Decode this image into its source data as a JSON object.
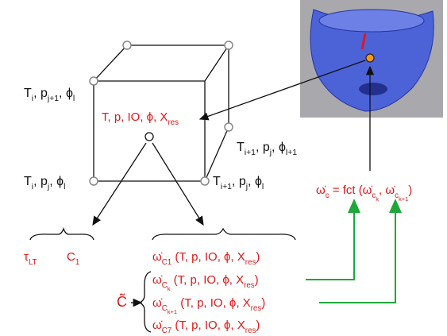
{
  "cube": {
    "top_left": [
      {
        "t": "T"
      },
      {
        "sub": "i"
      },
      {
        "t": ", p"
      },
      {
        "sub": "j+1"
      },
      {
        "t": ", ϕ"
      },
      {
        "sub": "l"
      }
    ],
    "bottom_left": [
      {
        "t": "T"
      },
      {
        "sub": "i"
      },
      {
        "t": ", p"
      },
      {
        "sub": "j"
      },
      {
        "t": ", ϕ"
      },
      {
        "sub": "l"
      }
    ],
    "right": [
      {
        "t": "T"
      },
      {
        "sub": "i+1"
      },
      {
        "t": ", p"
      },
      {
        "sub": "j"
      },
      {
        "t": ", ϕ"
      },
      {
        "sub": "l+1"
      }
    ],
    "bottom_right": [
      {
        "t": "T"
      },
      {
        "sub": "i+1"
      },
      {
        "t": ", p"
      },
      {
        "sub": "j"
      },
      {
        "t": ", ϕ"
      },
      {
        "sub": "l"
      }
    ],
    "center": [
      {
        "t": "T, p, IO, ϕ, X"
      },
      {
        "sub": "res"
      }
    ]
  },
  "function": [
    {
      "t": "ω̇"
    },
    {
      "sub": "c"
    },
    {
      "t": " = fct (ω̇"
    },
    {
      "sub": "c"
    },
    {
      "subsub": "k"
    },
    {
      "t": ", ω̇"
    },
    {
      "sub": "c"
    },
    {
      "subsub": "k+1"
    },
    {
      "t": ")"
    }
  ],
  "left_group": {
    "tau": [
      {
        "t": "τ"
      },
      {
        "sub": "LT"
      }
    ],
    "c1": [
      {
        "t": "C"
      },
      {
        "sub": "1"
      }
    ]
  },
  "c_tilde": [
    {
      "t": "C̃"
    }
  ],
  "list": [
    [
      {
        "t": "ω̇"
      },
      {
        "sub": "C1"
      },
      {
        "t": " (T, p, IO, ϕ, X"
      },
      {
        "sub": "res"
      },
      {
        "t": ")"
      }
    ],
    [
      {
        "t": "ω̇"
      },
      {
        "sub": "C"
      },
      {
        "subsub": "k"
      },
      {
        "t": " (T, p, IO, ϕ, X"
      },
      {
        "sub": "res"
      },
      {
        "t": ")"
      }
    ],
    [
      {
        "t": "ω̇"
      },
      {
        "sub": "C"
      },
      {
        "subsub": "k+1"
      },
      {
        "t": " (T, p, IO, ϕ, X"
      },
      {
        "sub": "res"
      },
      {
        "t": ")"
      }
    ],
    [
      {
        "t": "ω̇"
      },
      {
        "sub": "C7"
      },
      {
        "t": " (T, p, IO, ϕ, X"
      },
      {
        "sub": "res"
      },
      {
        "t": ")"
      }
    ]
  ]
}
